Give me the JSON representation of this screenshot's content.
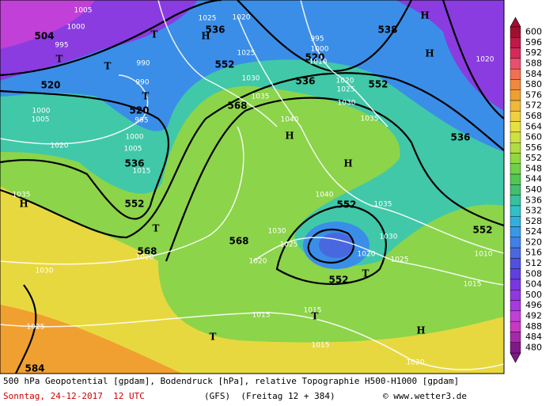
{
  "map": {
    "geopotential_labels": [
      504,
      520,
      520,
      536,
      552,
      568,
      568,
      568,
      536,
      552,
      536,
      520,
      538,
      552,
      536,
      552,
      552,
      552,
      584
    ],
    "pressure_labels": [
      1005,
      1000,
      995,
      990,
      990,
      995,
      1000,
      1005,
      1015,
      1020,
      1000,
      1005,
      1035,
      1030,
      1025,
      1020,
      1025,
      1020,
      1025,
      1030,
      1035,
      1040,
      1010,
      1020,
      1025,
      1030,
      1035,
      1040,
      1035,
      1030,
      1025,
      1020,
      1020,
      1025,
      1030,
      1010,
      1015,
      1015,
      1015,
      1015,
      1020,
      1020,
      995,
      1000
    ],
    "system_labels": [
      "T",
      "T",
      "T",
      "T",
      "T",
      "H",
      "H",
      "H",
      "H",
      "H",
      "H",
      "T",
      "T",
      "T",
      "H"
    ]
  },
  "colorbar": {
    "values": [
      600,
      596,
      592,
      588,
      584,
      580,
      576,
      572,
      568,
      564,
      560,
      556,
      552,
      548,
      544,
      540,
      536,
      532,
      528,
      524,
      520,
      516,
      512,
      508,
      504,
      500,
      496,
      492,
      488,
      484,
      480
    ]
  },
  "footer": {
    "description": "500 hPa Geopotential [gpdam], Bodendruck [hPa], relative Topographie H500-H1000 [gpdam]",
    "date": "Sonntag, 24-12-2017  12 UTC",
    "model": "(GFS)  (Freitag 12 + 384)",
    "credit": "© www.wetter3.de"
  }
}
